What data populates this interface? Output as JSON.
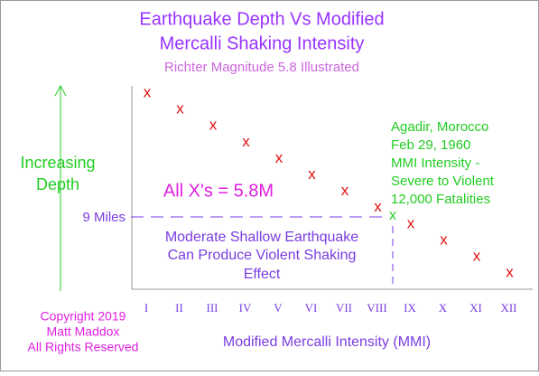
{
  "title": {
    "lines": [
      "Earthquake Depth Vs Modified",
      "Mercalli Shaking Intensity"
    ]
  },
  "subtitle": "Richter Magnitude 5.8 Illustrated",
  "y_axis": {
    "label_lines": [
      "Increasing",
      "Depth"
    ],
    "depth_label": "9 Miles"
  },
  "x_axis": {
    "label": "Modified Mercalli Intensity (MMI)",
    "ticks": [
      "I",
      "II",
      "III",
      "IV",
      "V",
      "VI",
      "VII",
      "VIII",
      "IX",
      "X",
      "XI",
      "XII"
    ]
  },
  "markers": {
    "red": [
      "x",
      "x",
      "x",
      "x",
      "x",
      "x",
      "x",
      "x",
      "x",
      "x",
      "x",
      "x"
    ],
    "highlight": "x"
  },
  "note": "All X's = 5.8M",
  "shallow_note": {
    "lines": [
      "Moderate Shallow Earthquake",
      "Can Produce Violent Shaking",
      "Effect"
    ]
  },
  "event": {
    "lines": [
      "Agadir, Morocco",
      "Feb 29, 1960",
      "MMI Intensity -",
      "Severe to Violent",
      "12,000 Fatalities"
    ]
  },
  "copyright": {
    "lines": [
      "Copyright 2019",
      "Matt Maddox",
      "All Rights Reserved"
    ]
  }
}
